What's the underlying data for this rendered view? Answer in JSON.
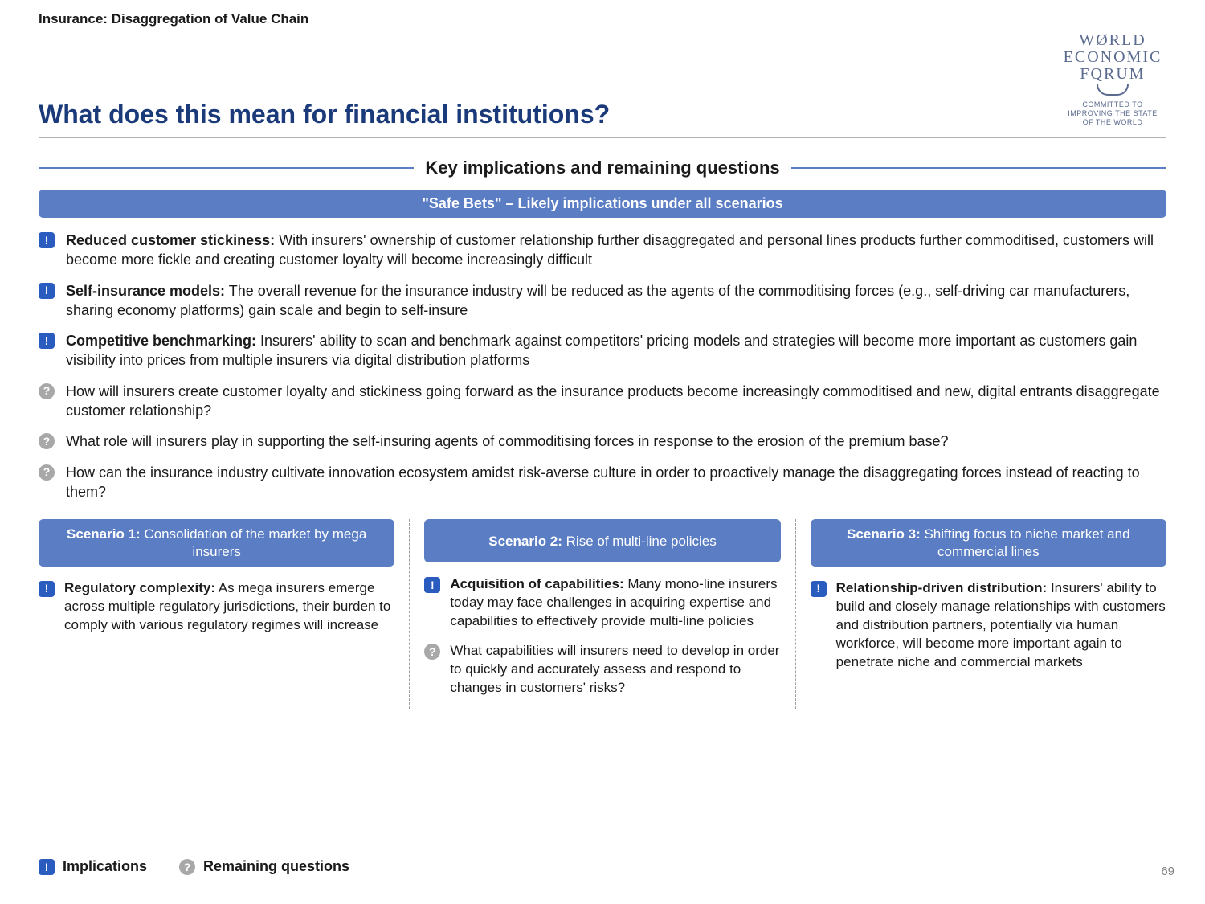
{
  "breadcrumb": "Insurance: Disaggregation of Value Chain",
  "logo": {
    "line1": "WØRLD",
    "line2": "ECONOMIC",
    "line3": "FQRUM",
    "tagline1": "COMMITTED TO",
    "tagline2": "IMPROVING THE STATE",
    "tagline3": "OF THE WORLD"
  },
  "title": "What does this mean for financial institutions?",
  "section_header": "Key implications and remaining questions",
  "safe_bets_bar": "\"Safe Bets\" – Likely implications under all scenarios",
  "colors": {
    "title_color": "#1a3a7a",
    "bar_bg": "#5a7dc4",
    "bar_text": "#ffffff",
    "impl_icon_bg": "#2a5bbf",
    "ques_icon_bg": "#a8a8a8",
    "rule_color": "#5a7dc4",
    "body_text": "#1a1a1a",
    "logo_color": "#5b6b8f"
  },
  "main_items": [
    {
      "type": "impl",
      "lead": "Reduced customer stickiness:",
      "body": " With insurers' ownership of customer relationship further disaggregated and personal lines products further commoditised, customers will become more fickle and creating customer loyalty will become increasingly difficult"
    },
    {
      "type": "impl",
      "lead": "Self-insurance models:",
      "body": " The overall revenue for the insurance industry will be reduced as the agents of the commoditising forces (e.g., self-driving car manufacturers, sharing economy platforms) gain scale and begin to self-insure"
    },
    {
      "type": "impl",
      "lead": "Competitive benchmarking:",
      "body": " Insurers' ability to scan and benchmark against competitors' pricing models and strategies will become more important as customers gain visibility into prices from multiple insurers via digital distribution platforms"
    },
    {
      "type": "ques",
      "lead": "",
      "body": "How will insurers create customer loyalty and stickiness going forward as the insurance products become increasingly commoditised and new, digital entrants disaggregate customer relationship?"
    },
    {
      "type": "ques",
      "lead": "",
      "body": "What role will insurers play in supporting the self-insuring agents of commoditising forces in response to the erosion of the premium base?"
    },
    {
      "type": "ques",
      "lead": "",
      "body": "How can the insurance industry cultivate innovation ecosystem amidst risk-averse culture in order to proactively manage the disaggregating forces instead of reacting to them?"
    }
  ],
  "scenarios": [
    {
      "header_bold": "Scenario 1:",
      "header_rest": " Consolidation of the market by mega insurers",
      "items": [
        {
          "type": "impl",
          "lead": "Regulatory complexity:",
          "body": " As mega insurers emerge across multiple regulatory jurisdictions, their burden to comply with various regulatory regimes will increase"
        }
      ]
    },
    {
      "header_bold": "Scenario 2:",
      "header_rest": " Rise of multi-line policies",
      "items": [
        {
          "type": "impl",
          "lead": "Acquisition of capabilities:",
          "body": " Many mono-line insurers today may face challenges in acquiring expertise and capabilities to effectively provide multi-line policies"
        },
        {
          "type": "ques",
          "lead": "",
          "body": "What capabilities will insurers need to develop in order to quickly and accurately assess and respond to changes in customers' risks?"
        }
      ]
    },
    {
      "header_bold": "Scenario 3:",
      "header_rest": " Shifting focus to niche market and commercial lines",
      "items": [
        {
          "type": "impl",
          "lead": "Relationship-driven distribution:",
          "body": " Insurers' ability to build and closely manage relationships with customers and distribution partners, potentially via human workforce, will become more important again to penetrate niche and commercial markets"
        }
      ]
    }
  ],
  "legend": {
    "implications": "Implications",
    "remaining": "Remaining questions"
  },
  "page_number": "69"
}
